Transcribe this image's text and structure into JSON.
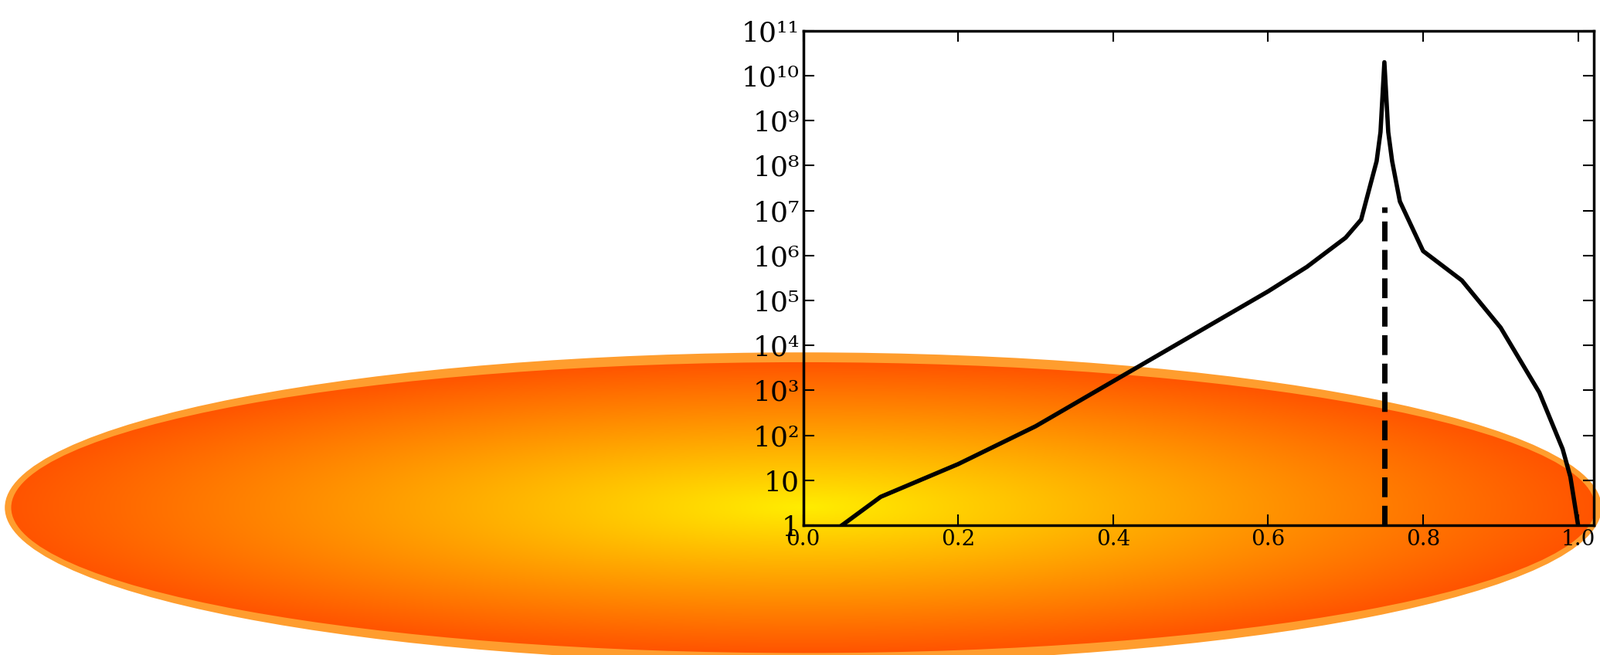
{
  "chart_data": {
    "type": "line",
    "x": [
      0.05,
      0.1,
      0.2,
      0.3,
      0.4,
      0.5,
      0.6,
      0.65,
      0.7,
      0.72,
      0.74,
      0.745,
      0.75,
      0.755,
      0.76,
      0.77,
      0.8,
      0.85,
      0.9,
      0.95,
      0.98,
      0.99,
      1.0
    ],
    "series": [
      {
        "color": "#000000",
        "line_style": "solid",
        "values": [
          1,
          4.3,
          23,
          160,
          1600,
          16000,
          160000,
          560000,
          2500000,
          6300000,
          126000000,
          560000000,
          20000000000,
          560000000,
          126000000,
          16000000,
          1260000,
          280000,
          25000,
          900,
          50,
          12,
          1
        ]
      }
    ],
    "vertical_line": {
      "x": 0.75,
      "ymin": 1,
      "ymax": 12000000,
      "line_style": "dashed",
      "color": "#000000"
    },
    "log": "y",
    "xlim": [
      0.0,
      1.02
    ],
    "ylim": [
      1,
      100000000000
    ],
    "xticks": [
      0.0,
      0.2,
      0.4,
      0.6,
      0.8,
      1.0
    ],
    "yticks": [
      1,
      10,
      {
        "value": 100,
        "label": "10²"
      },
      {
        "value": 1000,
        "label": "10³"
      },
      {
        "value": 10000,
        "label": "10⁴"
      },
      {
        "value": 100000,
        "label": "10⁵"
      },
      {
        "value": 1000000,
        "label": "10⁶"
      },
      {
        "value": 10000000,
        "label": "10⁷"
      },
      {
        "value": 100000000,
        "label": "10⁸"
      },
      {
        "value": 1000000000,
        "label": "10⁹"
      },
      {
        "value": 10000000000,
        "label": "10¹⁰"
      },
      {
        "value": 100000000000,
        "label": "10¹¹"
      }
    ],
    "grid": false
  }
}
